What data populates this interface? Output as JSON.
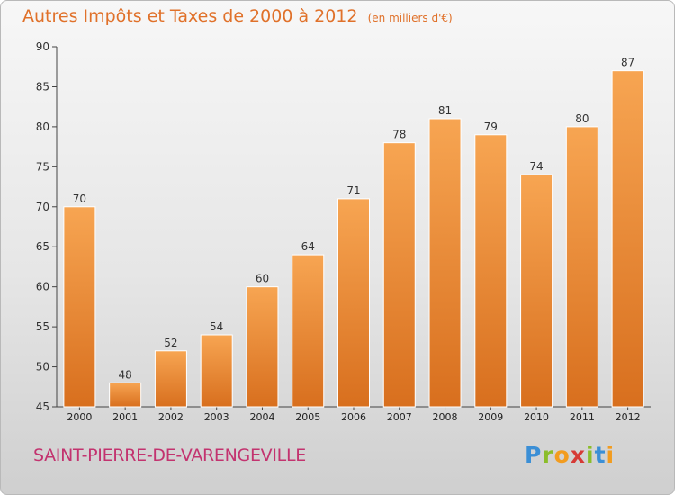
{
  "header": {
    "title": "Autres Impôts et Taxes de 2000 à 2012",
    "unit": "(en milliers d'€)"
  },
  "footer": {
    "commune": "SAINT-PIERRE-DE-VARENGEVILLE",
    "logo_text": "Proxiti"
  },
  "colors": {
    "title": "#e0712a",
    "commune": "#c3336f",
    "bar_light": "#f7a552",
    "bar_dark": "#d86f1e"
  },
  "chart_data": {
    "type": "bar",
    "title": "Autres Impôts et Taxes de 2000 à 2012",
    "subtitle": "(en milliers d'€)",
    "xlabel": "",
    "ylabel": "",
    "categories": [
      "2000",
      "2001",
      "2002",
      "2003",
      "2004",
      "2005",
      "2006",
      "2007",
      "2008",
      "2009",
      "2010",
      "2011",
      "2012"
    ],
    "values": [
      70,
      48,
      52,
      54,
      60,
      64,
      71,
      78,
      81,
      79,
      74,
      80,
      87
    ],
    "ylim": [
      45,
      90
    ],
    "yticks": [
      45,
      50,
      55,
      60,
      65,
      70,
      75,
      80,
      85,
      90
    ],
    "grid": false,
    "data_labels": true
  }
}
